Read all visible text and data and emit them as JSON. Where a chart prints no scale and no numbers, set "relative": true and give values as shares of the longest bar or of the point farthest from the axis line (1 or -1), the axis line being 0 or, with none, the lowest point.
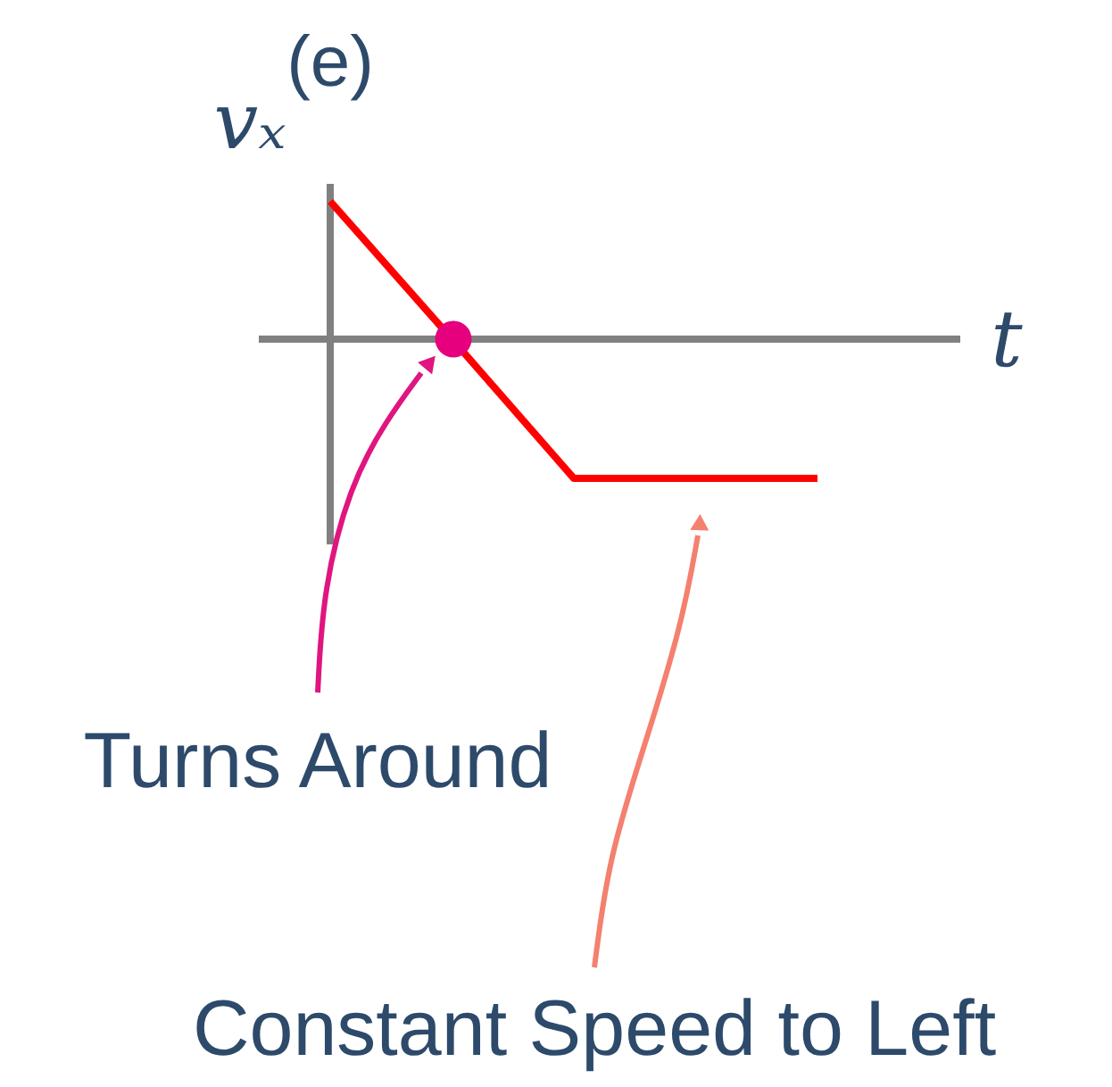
{
  "chart_data": {
    "type": "line",
    "title": "(e)",
    "xlabel": "t",
    "ylabel": "vₓ",
    "categories": [
      null,
      null,
      null,
      null,
      null
    ],
    "relative": true,
    "line_style": "solid",
    "series": [
      {
        "color": "#ff0000",
        "values": [
          0.99,
          0,
          -1,
          -1,
          -1
        ]
      }
    ],
    "annotations": [
      "Turns Around",
      "Constant Speed to Left"
    ]
  }
}
